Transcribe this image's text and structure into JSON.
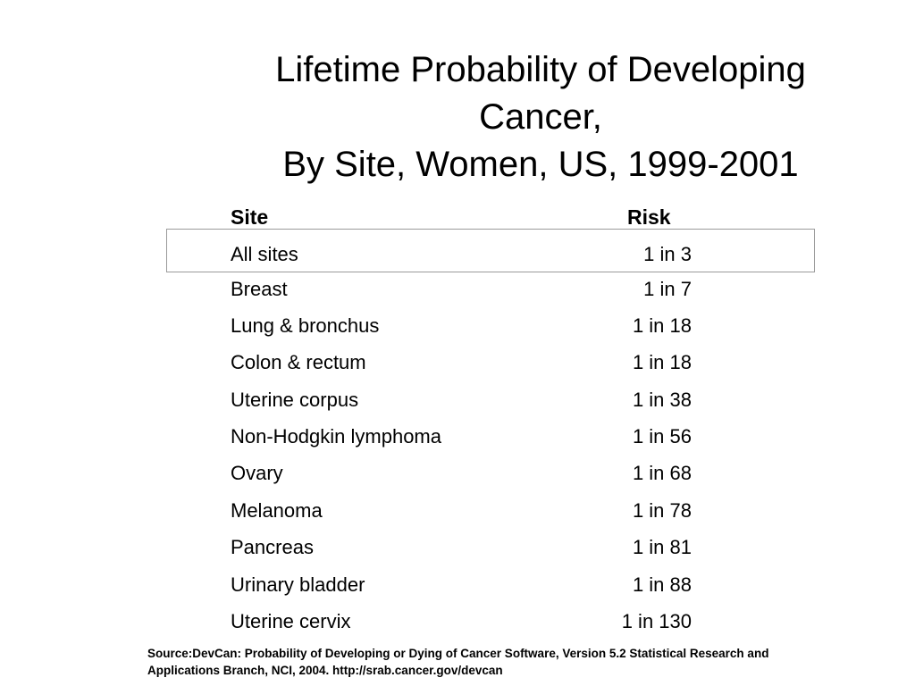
{
  "title": {
    "line1": "Lifetime Probability of Developing",
    "line2": "Cancer,",
    "line3": "By Site, Women, US, 1999-2001"
  },
  "table": {
    "headers": {
      "site": "Site",
      "risk": "Risk"
    },
    "rows": [
      {
        "site": "All sites",
        "risk": "1 in 3"
      },
      {
        "site": "Breast",
        "risk": "1 in 7"
      },
      {
        "site": "Lung & bronchus",
        "risk": "1 in 18"
      },
      {
        "site": "Colon & rectum",
        "risk": "1 in 18"
      },
      {
        "site": "Uterine corpus",
        "risk": "1 in 38"
      },
      {
        "site": "Non-Hodgkin lymphoma",
        "risk": "1 in 56"
      },
      {
        "site": "Ovary",
        "risk": "1 in 68"
      },
      {
        "site": "Melanoma",
        "risk": "1 in 78"
      },
      {
        "site": "Pancreas",
        "risk": "1 in 81"
      },
      {
        "site": "Urinary bladder",
        "risk": "1 in 88"
      },
      {
        "site": "Uterine cervix",
        "risk": "1 in 130"
      }
    ]
  },
  "source": {
    "line1": "Source:DevCan: Probability of Developing or Dying of Cancer Software, Version 5.2 Statistical Research and",
    "line2": "Applications Branch, NCI, 2004. http://srab.cancer.gov/devcan"
  }
}
